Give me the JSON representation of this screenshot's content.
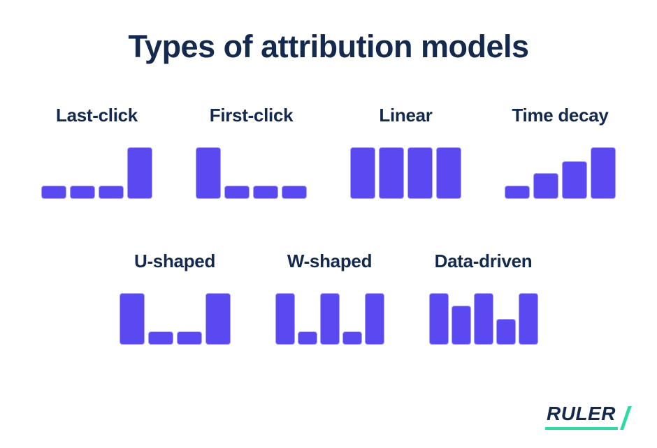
{
  "page": {
    "title": "Types of attribution models"
  },
  "colors": {
    "navy_text": "#14294e",
    "bar_fill": "#5a49f0",
    "bar_border": "#a9a2f7",
    "accent_green": "#2edba6",
    "background": "#ffffff"
  },
  "chart_data": [
    {
      "type": "bar",
      "title": "Last-click",
      "row": 1,
      "values": [
        25,
        25,
        25,
        100
      ],
      "ylim": [
        0,
        100
      ],
      "grid": false,
      "note": "relative credit, 100 = tallest bar"
    },
    {
      "type": "bar",
      "title": "First-click",
      "row": 1,
      "values": [
        100,
        25,
        25,
        25
      ],
      "ylim": [
        0,
        100
      ],
      "grid": false
    },
    {
      "type": "bar",
      "title": "Linear",
      "row": 1,
      "values": [
        100,
        100,
        100,
        100
      ],
      "ylim": [
        0,
        100
      ],
      "grid": false
    },
    {
      "type": "bar",
      "title": "Time decay",
      "row": 1,
      "values": [
        25,
        50,
        73,
        100
      ],
      "ylim": [
        0,
        100
      ],
      "grid": false
    },
    {
      "type": "bar",
      "title": "U-shaped",
      "row": 2,
      "values": [
        100,
        25,
        25,
        100
      ],
      "ylim": [
        0,
        100
      ],
      "grid": false
    },
    {
      "type": "bar",
      "title": "W-shaped",
      "row": 2,
      "values": [
        100,
        25,
        100,
        25,
        100
      ],
      "ylim": [
        0,
        100
      ],
      "grid": false
    },
    {
      "type": "bar",
      "title": "Data-driven",
      "row": 2,
      "values": [
        100,
        75,
        100,
        50,
        100
      ],
      "ylim": [
        0,
        100
      ],
      "grid": false
    }
  ],
  "logo": {
    "text": "RULER"
  }
}
